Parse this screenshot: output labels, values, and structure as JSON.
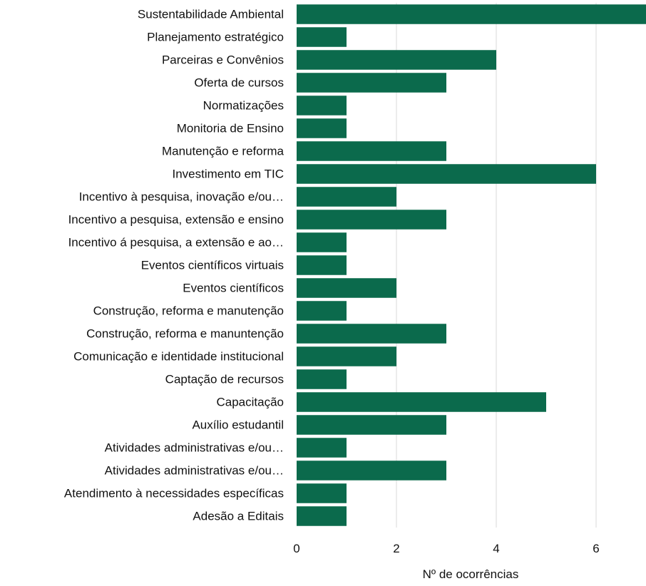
{
  "chart_data": {
    "type": "bar",
    "orientation": "horizontal",
    "title": "",
    "xlabel": "Nº de ocorrências",
    "ylabel": "",
    "xlim": [
      0,
      7
    ],
    "x_ticks": [
      0,
      2,
      4,
      6
    ],
    "grid": "vertical",
    "legend": "none",
    "bar_color": "#0b6a4c",
    "grid_color": "#d9d9d9",
    "categories": [
      "Sustentabilidade Ambiental",
      "Planejamento estratégico",
      "Parceiras e Convênios",
      "Oferta de cursos",
      "Normatizações",
      "Monitoria de Ensino",
      "Manutenção e reforma",
      "Investimento em TIC",
      "Incentivo à pesquisa, inovação e/ou…",
      "Incentivo a pesquisa, extensão e ensino",
      "Incentivo á pesquisa, a extensão e ao…",
      "Eventos científicos virtuais",
      "Eventos científicos",
      "Construção, reforma e manutenção",
      "Construção, reforma e manuntenção",
      "Comunicação e identidade institucional",
      "Captação de recursos",
      "Capacitação",
      "Auxílio estudantil",
      "Atividades administrativas e/ou…",
      "Atividades administrativas e/ou…",
      "Atendimento à necessidades específicas",
      "Adesão a Editais"
    ],
    "values": [
      7,
      1,
      4,
      3,
      1,
      1,
      3,
      6,
      2,
      3,
      1,
      1,
      2,
      1,
      3,
      2,
      1,
      5,
      3,
      1,
      3,
      1,
      1
    ]
  }
}
